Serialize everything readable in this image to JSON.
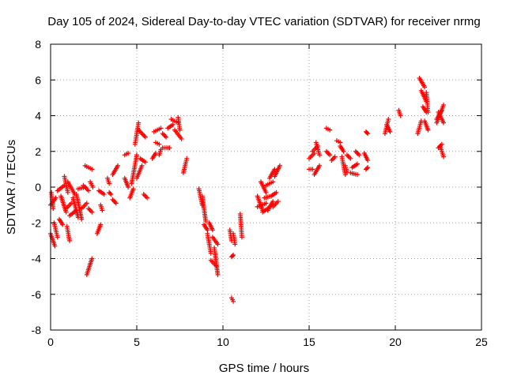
{
  "chart_data": {
    "type": "scatter",
    "title": "Day 105 of 2024, Sidereal Day-to-day VTEC variation (SDTVAR) for receiver nrmg",
    "xlabel": "GPS time / hours",
    "ylabel": "SDTVAR / TECUs",
    "xlim": [
      0,
      25
    ],
    "ylim": [
      -8,
      8
    ],
    "xticks": [
      "0",
      "5",
      "10",
      "15",
      "20",
      "25"
    ],
    "yticks": [
      "-8",
      "-6",
      "-4",
      "-2",
      "0",
      "2",
      "4",
      "6",
      "8"
    ],
    "grid": true,
    "marker": "+",
    "color": "#ff0000",
    "segments": [
      [
        0.0,
        -1.0,
        0.3,
        -0.6
      ],
      [
        0.0,
        -2.6,
        0.25,
        -3.3
      ],
      [
        0.05,
        -0.3,
        0.15,
        -1.2
      ],
      [
        0.2,
        -2.0,
        0.4,
        -2.8
      ],
      [
        0.4,
        -0.2,
        0.8,
        0.1
      ],
      [
        0.5,
        -1.8,
        0.7,
        -2.1
      ],
      [
        0.6,
        -0.5,
        0.9,
        -1.4
      ],
      [
        0.8,
        0.6,
        1.0,
        -0.3
      ],
      [
        0.9,
        -1.2,
        1.2,
        -0.9
      ],
      [
        0.95,
        -2.2,
        1.1,
        -3.0
      ],
      [
        1.0,
        0.3,
        1.4,
        -0.4
      ],
      [
        1.1,
        -1.6,
        1.5,
        -1.3
      ],
      [
        1.3,
        -0.6,
        1.6,
        -1.7
      ],
      [
        1.5,
        -0.4,
        1.8,
        -1.8
      ],
      [
        1.6,
        -0.1,
        2.0,
        0.0
      ],
      [
        1.8,
        -1.2,
        2.1,
        -0.9
      ],
      [
        1.9,
        0.1,
        2.2,
        -0.2
      ],
      [
        2.0,
        1.2,
        2.4,
        1.0
      ],
      [
        2.1,
        -4.9,
        2.4,
        -4.0
      ],
      [
        2.2,
        -1.2,
        2.4,
        -1.4
      ],
      [
        2.3,
        0.3,
        2.45,
        0.0
      ],
      [
        2.7,
        -2.6,
        2.9,
        -2.1
      ],
      [
        2.8,
        -0.2,
        3.1,
        -0.4
      ],
      [
        2.9,
        -1.0,
        3.0,
        -1.3
      ],
      [
        3.3,
        0.5,
        3.4,
        0.2
      ],
      [
        3.4,
        -0.3,
        3.5,
        -0.4
      ],
      [
        3.6,
        -0.7,
        3.8,
        -0.9
      ],
      [
        3.6,
        0.7,
        3.9,
        1.2
      ],
      [
        4.3,
        0.5,
        4.5,
        0.0
      ],
      [
        4.3,
        1.8,
        4.5,
        1.9
      ],
      [
        4.6,
        -0.6,
        4.8,
        -0.1
      ],
      [
        4.7,
        0.2,
        5.0,
        1.8
      ],
      [
        4.9,
        2.4,
        5.1,
        3.6
      ],
      [
        5.0,
        0.5,
        5.3,
        1.2
      ],
      [
        5.1,
        3.2,
        5.5,
        2.8
      ],
      [
        5.2,
        1.6,
        5.5,
        1.4
      ],
      [
        5.4,
        -0.4,
        5.6,
        -0.6
      ],
      [
        5.9,
        1.6,
        6.1,
        1.9
      ],
      [
        6.0,
        3.1,
        6.4,
        3.3
      ],
      [
        6.1,
        2.5,
        6.3,
        2.4
      ],
      [
        6.3,
        1.8,
        6.4,
        2.1
      ],
      [
        6.5,
        3.0,
        6.7,
        2.8
      ],
      [
        6.5,
        2.2,
        6.9,
        2.2
      ],
      [
        6.8,
        3.3,
        7.1,
        3.5
      ],
      [
        7.0,
        3.8,
        7.4,
        3.6
      ],
      [
        7.2,
        3.2,
        7.6,
        2.7
      ],
      [
        7.4,
        3.9,
        7.5,
        3.2
      ],
      [
        7.7,
        0.8,
        7.9,
        1.6
      ],
      [
        8.6,
        -0.1,
        8.8,
        -1.0
      ],
      [
        8.8,
        -0.5,
        9.0,
        -1.9
      ],
      [
        8.9,
        -2.1,
        9.1,
        -2.4
      ],
      [
        9.1,
        -2.6,
        9.3,
        -3.7
      ],
      [
        9.2,
        -2.0,
        9.4,
        -2.4
      ],
      [
        9.3,
        -4.1,
        9.6,
        -4.4
      ],
      [
        9.4,
        -2.8,
        9.7,
        -3.2
      ],
      [
        9.5,
        -3.4,
        9.7,
        -4.9
      ],
      [
        10.4,
        -2.4,
        10.5,
        -3.0
      ],
      [
        10.5,
        -3.9,
        10.6,
        -3.8
      ],
      [
        10.5,
        -6.2,
        10.6,
        -6.4
      ],
      [
        10.6,
        -2.6,
        10.7,
        -3.2
      ],
      [
        11.0,
        -1.5,
        11.1,
        -2.8
      ],
      [
        12.0,
        -0.5,
        12.3,
        -1.3
      ],
      [
        12.0,
        -1.1,
        12.5,
        -0.9
      ],
      [
        12.2,
        0.3,
        12.5,
        -0.3
      ],
      [
        12.3,
        -1.4,
        12.6,
        -1.2
      ],
      [
        12.4,
        -0.6,
        12.8,
        -0.5
      ],
      [
        12.5,
        0.1,
        12.9,
        0.3
      ],
      [
        12.6,
        -1.3,
        12.9,
        -0.8
      ],
      [
        12.7,
        0.5,
        13.0,
        1.0
      ],
      [
        12.8,
        -0.5,
        13.1,
        -0.3
      ],
      [
        12.9,
        -1.1,
        13.2,
        -0.8
      ],
      [
        13.0,
        0.6,
        13.3,
        1.2
      ],
      [
        15.0,
        1.0,
        15.2,
        1.0
      ],
      [
        15.0,
        1.6,
        15.3,
        1.9
      ],
      [
        15.2,
        2.0,
        15.5,
        2.3
      ],
      [
        15.3,
        0.7,
        15.6,
        1.2
      ],
      [
        15.4,
        2.5,
        15.6,
        1.8
      ],
      [
        16.0,
        2.0,
        16.2,
        1.8
      ],
      [
        16.0,
        3.3,
        16.2,
        3.2
      ],
      [
        16.3,
        1.5,
        16.5,
        1.7
      ],
      [
        16.6,
        2.6,
        16.8,
        2.5
      ],
      [
        16.8,
        2.3,
        17.0,
        2.0
      ],
      [
        16.9,
        1.7,
        17.1,
        0.7
      ],
      [
        17.1,
        1.2,
        17.2,
        0.8
      ],
      [
        17.2,
        1.8,
        17.4,
        1.6
      ],
      [
        17.4,
        0.8,
        17.8,
        0.7
      ],
      [
        17.5,
        1.1,
        17.8,
        1.3
      ],
      [
        17.7,
        2.0,
        17.9,
        1.8
      ],
      [
        18.2,
        1.9,
        18.4,
        1.5
      ],
      [
        18.3,
        3.1,
        18.4,
        3.0
      ],
      [
        18.3,
        1.0,
        18.4,
        1.1
      ],
      [
        19.4,
        3.0,
        19.6,
        3.8
      ],
      [
        19.5,
        3.5,
        19.7,
        3.1
      ],
      [
        20.2,
        4.3,
        20.3,
        4.0
      ],
      [
        21.3,
        3.0,
        21.5,
        3.7
      ],
      [
        21.4,
        6.1,
        21.7,
        5.6
      ],
      [
        21.5,
        5.4,
        21.8,
        4.8
      ],
      [
        21.6,
        4.5,
        21.8,
        4.2
      ],
      [
        21.7,
        3.7,
        21.9,
        3.2
      ],
      [
        21.8,
        5.3,
        21.9,
        4.2
      ],
      [
        22.4,
        3.6,
        22.8,
        4.6
      ],
      [
        22.4,
        3.8,
        22.7,
        4.3
      ],
      [
        22.5,
        4.2,
        22.8,
        3.6
      ],
      [
        22.5,
        2.2,
        22.7,
        2.4
      ],
      [
        22.6,
        2.3,
        22.8,
        1.7
      ]
    ]
  }
}
